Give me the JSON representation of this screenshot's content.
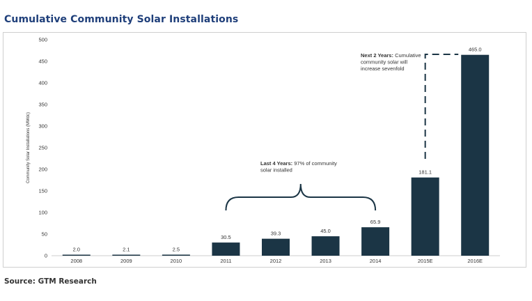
{
  "page": {
    "title": "Cumulative Community Solar Installations",
    "source": "Source: GTM Research"
  },
  "colors": {
    "bar": "#1b3545",
    "title": "#1f3f7a"
  },
  "chart_data": {
    "type": "bar",
    "categories": [
      "2008",
      "2009",
      "2010",
      "2011",
      "2012",
      "2013",
      "2014",
      "2015E",
      "2016E"
    ],
    "values": [
      2.0,
      2.1,
      2.5,
      30.5,
      39.3,
      45.0,
      65.9,
      181.1,
      465.0
    ],
    "data_labels": [
      "2.0",
      "2.1",
      "2.5",
      "30.5",
      "39.3",
      "45.0",
      "65.9",
      "181.1",
      "465.0"
    ],
    "ylabel": "Community Solar Installations (MWdc)",
    "ylim": [
      0,
      500
    ],
    "yticks": [
      0,
      50,
      100,
      150,
      200,
      250,
      300,
      350,
      400,
      450,
      500
    ],
    "grid": false,
    "annotations": [
      {
        "bold": "Last 4 Years:",
        "lines": [
          " 97% of community",
          "solar installed"
        ],
        "refers_to": [
          "2011",
          "2012",
          "2013",
          "2014"
        ]
      },
      {
        "bold": "Next 2 Years:",
        "lines": [
          " Cumulative",
          "community solar will",
          "increase sevenfold"
        ],
        "refers_to": [
          "2015E",
          "2016E"
        ]
      }
    ]
  }
}
